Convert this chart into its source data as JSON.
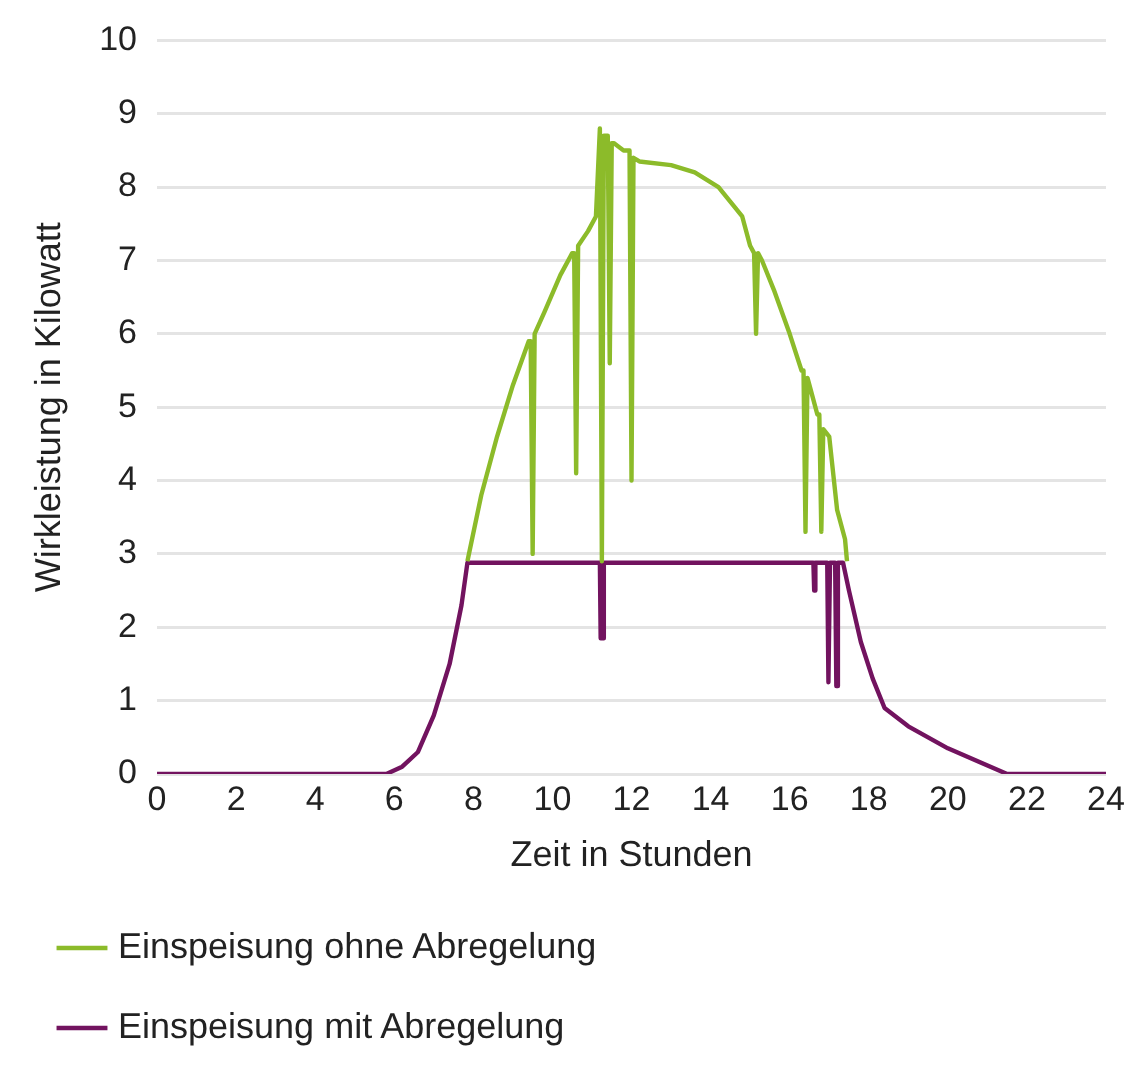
{
  "chart_data": {
    "type": "line",
    "xlabel": "Zeit in Stunden",
    "ylabel": "Wirkleistung in Kilowatt",
    "xlim": [
      0,
      24
    ],
    "xticks": [
      0,
      2,
      4,
      6,
      8,
      10,
      12,
      14,
      16,
      18,
      20,
      22,
      24
    ],
    "ylim": [
      0,
      10
    ],
    "yticks": [
      0,
      1,
      2,
      3,
      4,
      5,
      6,
      7,
      8,
      9,
      10
    ],
    "grid": "y",
    "legend": "bottom",
    "marker": "none",
    "line_style": "solid",
    "series": [
      {
        "name": "Einspeisung ohne Abregelung",
        "color": "#8cbb2a",
        "x": [
          7.85,
          8.2,
          8.6,
          9.0,
          9.4,
          9.45,
          9.5,
          9.55,
          9.8,
          10.2,
          10.5,
          10.55,
          10.6,
          10.65,
          10.9,
          11.1,
          11.2,
          11.25,
          11.3,
          11.4,
          11.45,
          11.5,
          11.55,
          11.8,
          11.95,
          12.0,
          12.05,
          12.2,
          13.0,
          13.6,
          14.2,
          14.8,
          15.0,
          15.1,
          15.15,
          15.2,
          15.3,
          15.6,
          16.0,
          16.3,
          16.35,
          16.4,
          16.45,
          16.5,
          16.7,
          16.75,
          16.8,
          16.85,
          17.0,
          17.2,
          17.4,
          17.45
        ],
        "values": [
          2.9,
          3.8,
          4.6,
          5.3,
          5.9,
          5.9,
          3.0,
          6.0,
          6.3,
          6.8,
          7.1,
          7.1,
          4.1,
          7.2,
          7.4,
          7.6,
          8.8,
          2.9,
          8.7,
          8.7,
          5.6,
          8.6,
          8.6,
          8.5,
          8.5,
          4.0,
          8.4,
          8.35,
          8.3,
          8.2,
          8.0,
          7.6,
          7.2,
          7.1,
          6.0,
          7.1,
          7.0,
          6.6,
          6.0,
          5.5,
          5.5,
          3.3,
          5.4,
          5.3,
          4.9,
          4.9,
          3.3,
          4.7,
          4.6,
          3.6,
          3.2,
          2.9
        ]
      },
      {
        "name": "Einspeisung mit Abregelung",
        "color": "#72135f",
        "x": [
          0,
          5.8,
          6.2,
          6.6,
          7.0,
          7.4,
          7.7,
          7.85,
          11.2,
          11.22,
          11.28,
          11.3,
          16.6,
          16.62,
          16.65,
          16.95,
          16.98,
          17.02,
          17.15,
          17.18,
          17.22,
          17.35,
          17.5,
          17.8,
          18.1,
          18.4,
          19.0,
          20.0,
          21.5,
          24
        ],
        "values": [
          0,
          0,
          0.1,
          0.3,
          0.8,
          1.5,
          2.3,
          2.88,
          2.88,
          1.85,
          1.85,
          2.88,
          2.88,
          2.5,
          2.88,
          2.88,
          1.25,
          2.88,
          2.88,
          1.2,
          2.88,
          2.88,
          2.5,
          1.8,
          1.3,
          0.9,
          0.65,
          0.35,
          0.0,
          0
        ]
      }
    ]
  }
}
